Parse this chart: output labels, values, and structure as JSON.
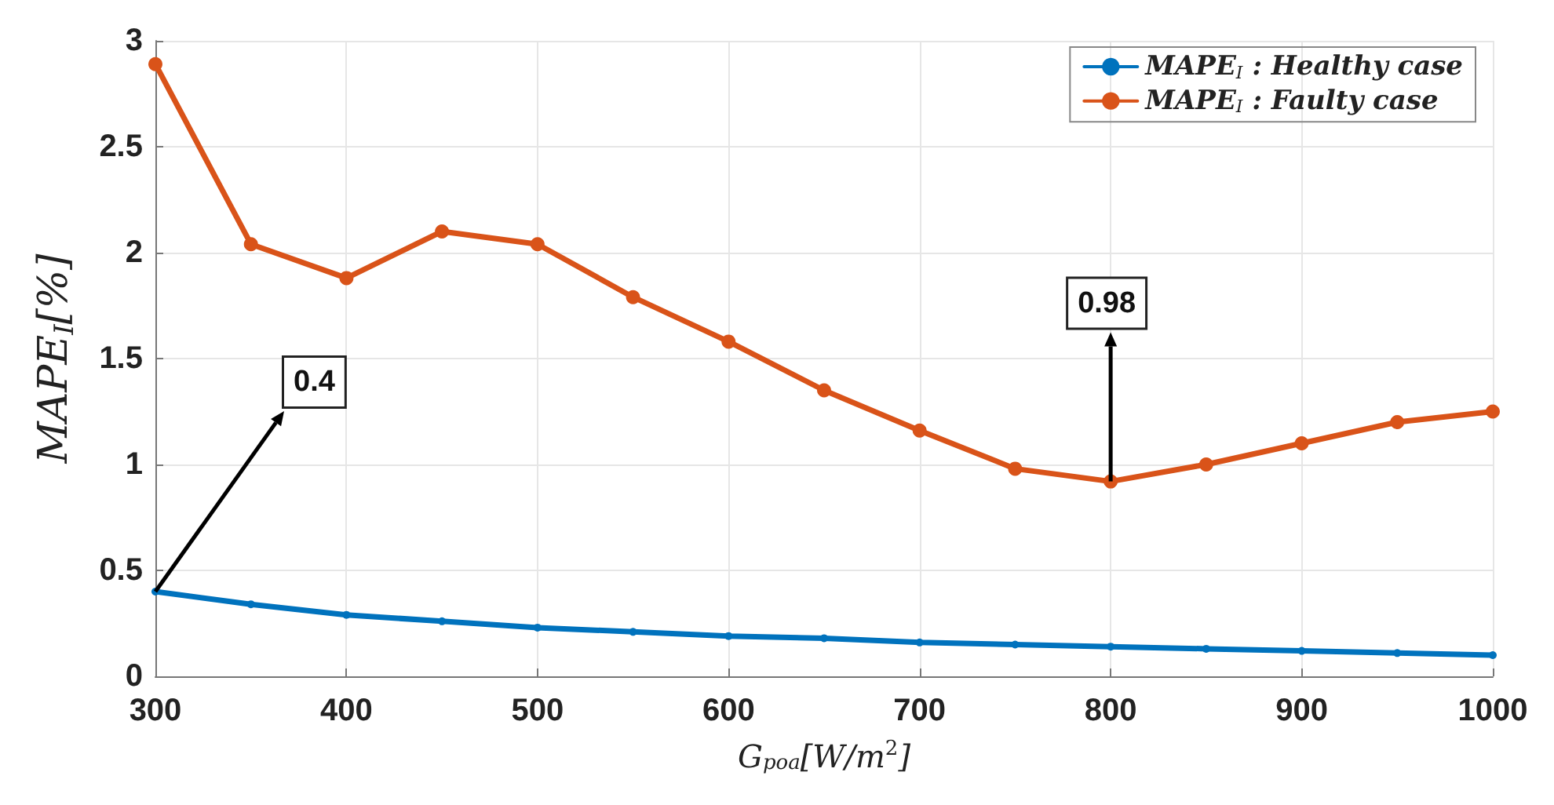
{
  "chart_data": {
    "type": "line",
    "xlabel": "G$_{poa}$[W/m$^{2}$]",
    "ylabel": "MAPE$_{I}$[%]",
    "x": [
      300,
      350,
      400,
      450,
      500,
      550,
      600,
      650,
      700,
      750,
      800,
      850,
      900,
      950,
      1000
    ],
    "series": [
      {
        "name": "MAPE$_{I}$ : Healthy case",
        "color": "#0072bd",
        "values": [
          0.4,
          0.34,
          0.29,
          0.26,
          0.23,
          0.21,
          0.19,
          0.18,
          0.16,
          0.15,
          0.14,
          0.13,
          0.12,
          0.11,
          0.1
        ]
      },
      {
        "name": "MAPE$_{I}$ : Faulty case",
        "color": "#d95319",
        "values": [
          2.89,
          2.04,
          1.88,
          2.1,
          2.04,
          1.79,
          1.58,
          1.35,
          1.16,
          0.98,
          0.92,
          1.0,
          1.1,
          1.2,
          1.25
        ]
      }
    ],
    "xlim": [
      300,
      1000
    ],
    "xticks": [
      300,
      400,
      500,
      600,
      700,
      800,
      900,
      1000
    ],
    "ylim": [
      0,
      3
    ],
    "yticks": [
      0,
      0.5,
      1,
      1.5,
      2,
      2.5,
      3
    ],
    "grid": true,
    "legend": "top right",
    "marker": "circle",
    "line_style": "solid",
    "annotations": [
      {
        "text": "0.4",
        "x": 300,
        "y": 0.4
      },
      {
        "text": "0.98",
        "x": 800,
        "y": 0.92
      }
    ]
  }
}
